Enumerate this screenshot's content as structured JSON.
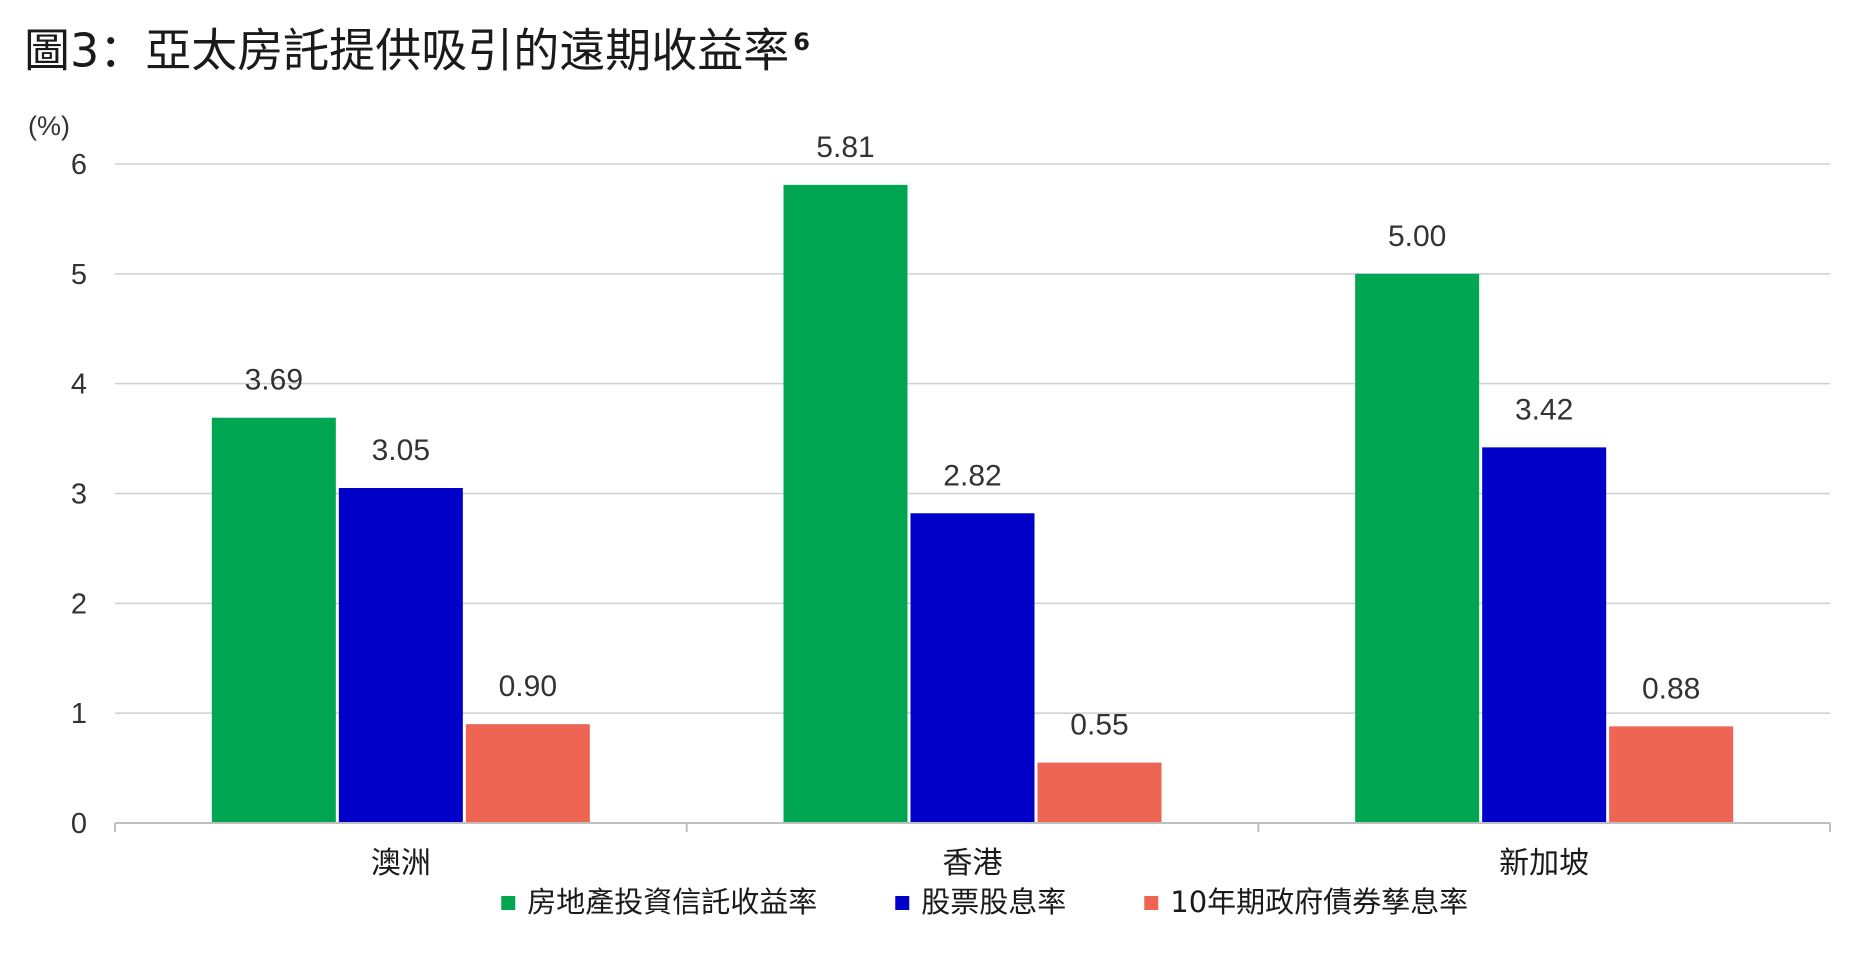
{
  "title": {
    "text": "圖3：亞太房託提供吸引的遠期收益率",
    "footnote": "6"
  },
  "chart_data": {
    "type": "bar",
    "title": "圖3：亞太房託提供吸引的遠期收益率",
    "ylabel": "(%)",
    "xlabel": "",
    "categories": [
      "澳洲",
      "香港",
      "新加坡"
    ],
    "series": [
      {
        "name": "房地產投資信託收益率",
        "color": "#00A651",
        "values": [
          3.69,
          5.81,
          5.0
        ],
        "labels": [
          "3.69",
          "5.81",
          "5.00"
        ]
      },
      {
        "name": "股票股息率",
        "color": "#0000C8",
        "values": [
          3.05,
          2.82,
          3.42
        ],
        "labels": [
          "3.05",
          "2.82",
          "3.42"
        ]
      },
      {
        "name": "10年期政府債券孳息率",
        "color": "#EE6554",
        "values": [
          0.9,
          0.55,
          0.88
        ],
        "labels": [
          "0.90",
          "0.55",
          "0.88"
        ]
      }
    ],
    "ylim": [
      0,
      6
    ],
    "yticks": [
      0,
      1,
      2,
      3,
      4,
      5,
      6
    ],
    "grid": true,
    "legend": "bottom"
  }
}
